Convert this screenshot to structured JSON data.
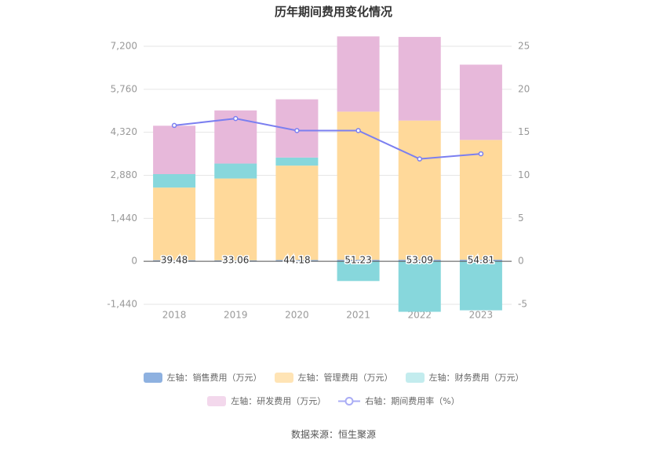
{
  "title": "历年期间费用变化情况",
  "source": "数据来源：恒生聚源",
  "colors": {
    "sales": "#8eb1e0",
    "admin": "#ffd99a",
    "finance": "#87d7dc",
    "rd": "#e7b8da",
    "rate": "#7b7ff0"
  },
  "legend": [
    {
      "key": "sales",
      "label": "左轴：销售费用（万元）",
      "color": "#8eb1e0",
      "type": "bar"
    },
    {
      "key": "admin",
      "label": "左轴：管理费用（万元）",
      "color": "#ffe4b5",
      "type": "bar"
    },
    {
      "key": "finance",
      "label": "左轴：财务费用（万元）",
      "color": "#c3ecee",
      "type": "bar"
    },
    {
      "key": "rd",
      "label": "左轴：研发费用（万元）",
      "color": "#f3d8ec",
      "type": "bar"
    },
    {
      "key": "rate",
      "label": "右轴：期间费用率（%）",
      "color": "#a9acf5",
      "type": "line"
    }
  ],
  "chart_data": {
    "type": "bar",
    "stacked": true,
    "categories": [
      "2018",
      "2019",
      "2020",
      "2021",
      "2022",
      "2023"
    ],
    "series": [
      {
        "name": "左轴：销售费用（万元）",
        "axis": "left",
        "values": [
          39.48,
          33.06,
          44.18,
          51.23,
          53.09,
          54.81
        ]
      },
      {
        "name": "左轴：管理费用（万元）",
        "axis": "left",
        "values": [
          2430,
          2740,
          3160,
          4960,
          4660,
          4010
        ]
      },
      {
        "name": "左轴：财务费用（万元）",
        "axis": "left",
        "values": [
          450,
          500,
          270,
          -660,
          -1690,
          -1640
        ]
      },
      {
        "name": "左轴：研发费用（万元）",
        "axis": "left",
        "values": [
          1620,
          1780,
          1950,
          2520,
          2800,
          2520
        ]
      },
      {
        "name": "右轴：期间费用率（%）",
        "axis": "right",
        "type": "line",
        "values": [
          15.8,
          16.6,
          15.2,
          15.2,
          11.9,
          12.5
        ]
      }
    ],
    "data_labels": [
      "39.48",
      "33.06",
      "44.18",
      "51.23",
      "53.09",
      "54.81"
    ],
    "left_axis": {
      "ylim": [
        -1440,
        7200
      ],
      "ticks": [
        "-1,440",
        "0",
        "1,440",
        "2,880",
        "4,320",
        "5,760",
        "7,200"
      ]
    },
    "right_axis": {
      "ylim": [
        -5,
        25
      ],
      "ticks": [
        "-5",
        "0",
        "5",
        "10",
        "15",
        "20",
        "25"
      ]
    },
    "grid": true
  }
}
